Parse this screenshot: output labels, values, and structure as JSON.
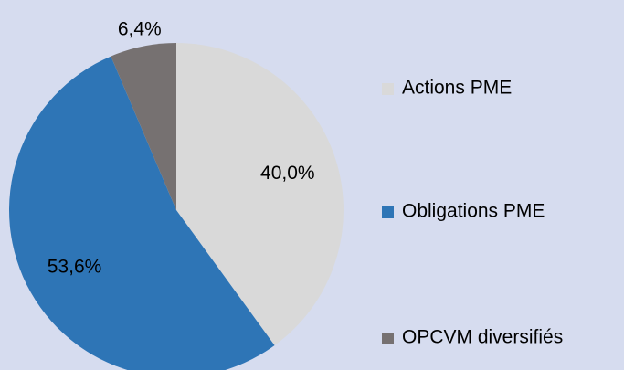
{
  "chart_data": {
    "type": "pie",
    "categories": [
      "Actions PME",
      "Obligations PME",
      "OPCVM diversifiés"
    ],
    "values": [
      40.0,
      53.6,
      6.4
    ],
    "value_labels": [
      "40,0%",
      "53,6%",
      "6,4%"
    ],
    "colors": [
      "#d9d9d9",
      "#2e75b6",
      "#767171"
    ],
    "legend": "right"
  }
}
